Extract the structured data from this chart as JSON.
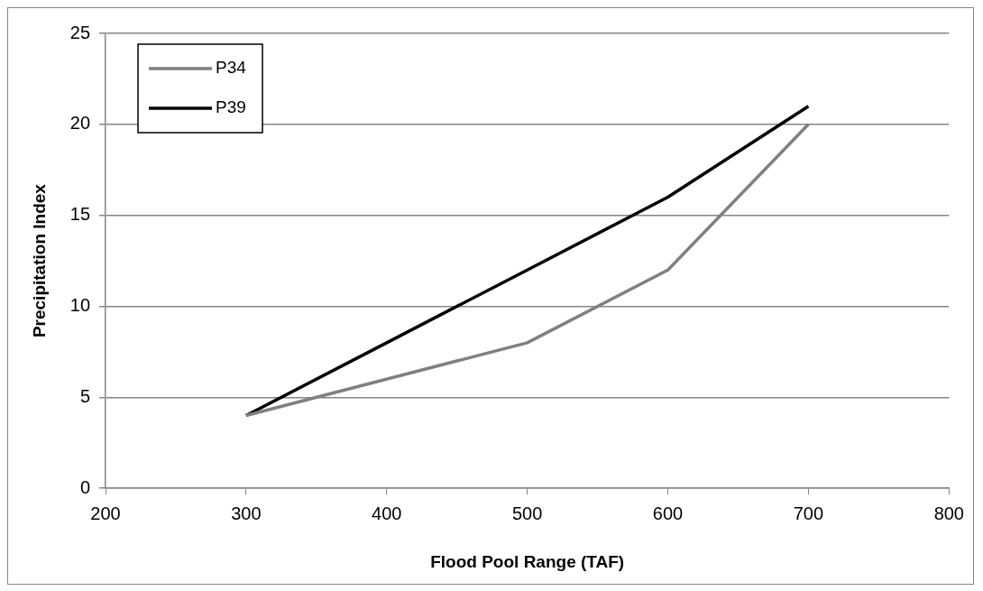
{
  "chart_data": {
    "type": "line",
    "xlabel": "Flood Pool Range (TAF)",
    "ylabel": "Precipitation Index",
    "series": [
      {
        "name": "P34",
        "color": "#808080",
        "x": [
          300,
          500,
          600,
          700
        ],
        "values": [
          4,
          8,
          12,
          20
        ]
      },
      {
        "name": "P39",
        "color": "#000000",
        "x": [
          300,
          400,
          500,
          600,
          700
        ],
        "values": [
          4,
          8,
          12,
          16,
          21
        ]
      }
    ],
    "xlim": [
      200,
      800
    ],
    "xticks": [
      200,
      300,
      400,
      500,
      600,
      700,
      800
    ],
    "ylim": [
      0,
      25
    ],
    "yticks": [
      0,
      5,
      10,
      15,
      20,
      25
    ],
    "grid": "y",
    "legend": "top left",
    "marker": "none",
    "line_style": "solid"
  }
}
